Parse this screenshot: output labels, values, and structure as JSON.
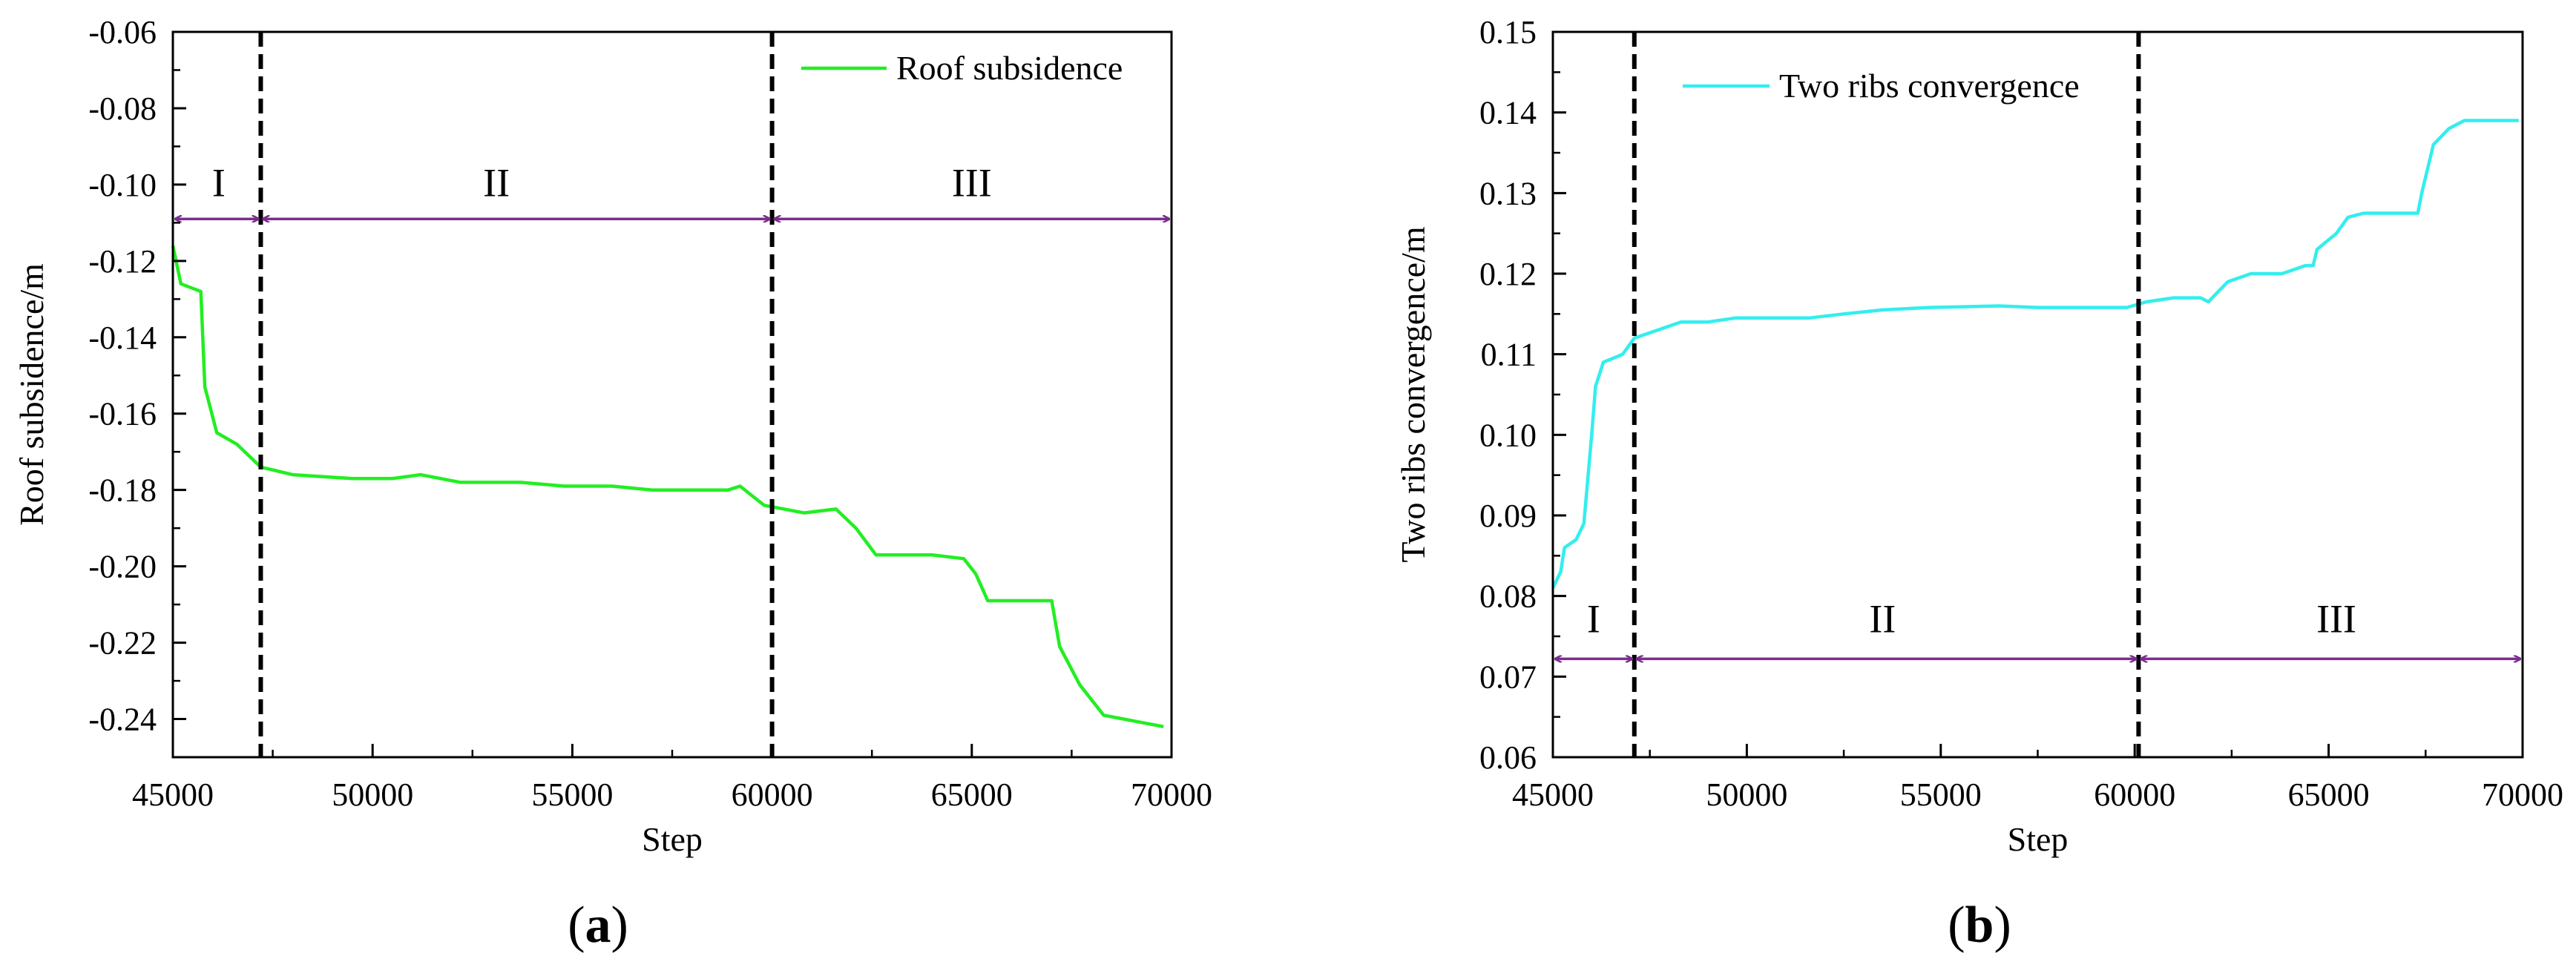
{
  "chart_data": [
    {
      "type": "line",
      "panel_label": "a",
      "xlabel": "Step",
      "ylabel": "Roof subsidence/m",
      "xlim": [
        45000,
        70000
      ],
      "ylim": [
        -0.25,
        -0.06
      ],
      "x_ticks": [
        45000,
        50000,
        55000,
        60000,
        65000,
        70000
      ],
      "y_ticks": [
        -0.24,
        -0.22,
        -0.2,
        -0.18,
        -0.16,
        -0.14,
        -0.12,
        -0.1,
        -0.08,
        -0.06
      ],
      "x_tick_labels": [
        "45000",
        "50000",
        "55000",
        "60000",
        "65000",
        "70000"
      ],
      "y_tick_labels": [
        "-0.24",
        "-0.22",
        "-0.20",
        "-0.18",
        "-0.16",
        "-0.14",
        "-0.12",
        "-0.10",
        "-0.08",
        "-0.06"
      ],
      "legend_position": "top-right",
      "series": [
        {
          "name": "Roof subsidence",
          "color": "#22ee22",
          "points": [
            [
              45000,
              -0.116
            ],
            [
              45200,
              -0.126
            ],
            [
              45700,
              -0.128
            ],
            [
              45800,
              -0.153
            ],
            [
              46100,
              -0.165
            ],
            [
              46600,
              -0.168
            ],
            [
              47200,
              -0.174
            ],
            [
              48000,
              -0.176
            ],
            [
              49500,
              -0.177
            ],
            [
              50500,
              -0.177
            ],
            [
              51200,
              -0.176
            ],
            [
              52200,
              -0.178
            ],
            [
              53700,
              -0.178
            ],
            [
              54800,
              -0.179
            ],
            [
              56000,
              -0.179
            ],
            [
              57000,
              -0.18
            ],
            [
              58900,
              -0.18
            ],
            [
              59200,
              -0.179
            ],
            [
              59800,
              -0.184
            ],
            [
              60800,
              -0.186
            ],
            [
              61600,
              -0.185
            ],
            [
              62100,
              -0.19
            ],
            [
              62600,
              -0.197
            ],
            [
              64000,
              -0.197
            ],
            [
              64800,
              -0.198
            ],
            [
              65100,
              -0.202
            ],
            [
              65400,
              -0.209
            ],
            [
              67000,
              -0.209
            ],
            [
              67200,
              -0.221
            ],
            [
              67700,
              -0.231
            ],
            [
              68300,
              -0.239
            ],
            [
              69800,
              -0.242
            ]
          ]
        }
      ],
      "stage_boundaries": [
        47200,
        60000
      ],
      "stage_arrow_y": -0.109,
      "stages": [
        {
          "label": "I",
          "from": 45000,
          "to": 47200,
          "label_x": 46150,
          "label_y": -0.103
        },
        {
          "label": "II",
          "from": 47200,
          "to": 60000,
          "label_x": 53100,
          "label_y": -0.103
        },
        {
          "label": "III",
          "from": 60000,
          "to": 70000,
          "label_x": 65000,
          "label_y": -0.103
        }
      ],
      "stage_color": "#7b2d8e"
    },
    {
      "type": "line",
      "panel_label": "b",
      "xlabel": "Step",
      "ylabel": "Two ribs convergence/m",
      "xlim": [
        45000,
        70000
      ],
      "ylim": [
        0.06,
        0.15
      ],
      "x_ticks": [
        45000,
        50000,
        55000,
        60000,
        65000,
        70000
      ],
      "y_ticks": [
        0.06,
        0.07,
        0.08,
        0.09,
        0.1,
        0.11,
        0.12,
        0.13,
        0.14,
        0.15
      ],
      "x_tick_labels": [
        "45000",
        "50000",
        "55000",
        "60000",
        "65000",
        "70000"
      ],
      "y_tick_labels": [
        "0.06",
        "0.07",
        "0.08",
        "0.09",
        "0.10",
        "0.11",
        "0.12",
        "0.13",
        "0.14",
        "0.15"
      ],
      "legend_position": "top-left",
      "series": [
        {
          "name": "Two ribs convergence",
          "color": "#33eeee",
          "points": [
            [
              45000,
              0.081
            ],
            [
              45200,
              0.083
            ],
            [
              45300,
              0.086
            ],
            [
              45600,
              0.087
            ],
            [
              45800,
              0.089
            ],
            [
              46000,
              0.1
            ],
            [
              46100,
              0.106
            ],
            [
              46300,
              0.109
            ],
            [
              46800,
              0.11
            ],
            [
              47100,
              0.112
            ],
            [
              47700,
              0.113
            ],
            [
              48300,
              0.114
            ],
            [
              49000,
              0.114
            ],
            [
              49700,
              0.1145
            ],
            [
              51600,
              0.1145
            ],
            [
              52500,
              0.115
            ],
            [
              53500,
              0.1155
            ],
            [
              54700,
              0.1158
            ],
            [
              56500,
              0.116
            ],
            [
              57500,
              0.1158
            ],
            [
              59800,
              0.1158
            ],
            [
              60300,
              0.1165
            ],
            [
              61000,
              0.117
            ],
            [
              61700,
              0.117
            ],
            [
              61900,
              0.1165
            ],
            [
              62400,
              0.119
            ],
            [
              63000,
              0.12
            ],
            [
              63800,
              0.12
            ],
            [
              64400,
              0.121
            ],
            [
              64600,
              0.121
            ],
            [
              64700,
              0.123
            ],
            [
              65200,
              0.125
            ],
            [
              65500,
              0.127
            ],
            [
              65900,
              0.1275
            ],
            [
              67300,
              0.1275
            ],
            [
              67400,
              0.13
            ],
            [
              67700,
              0.136
            ],
            [
              68100,
              0.138
            ],
            [
              68500,
              0.139
            ],
            [
              69900,
              0.139
            ]
          ]
        }
      ],
      "stage_boundaries": [
        47100,
        60100
      ],
      "stage_arrow_y": 0.0722,
      "stages": [
        {
          "label": "I",
          "from": 45000,
          "to": 47100,
          "label_x": 46050,
          "label_y": 0.0755
        },
        {
          "label": "II",
          "from": 47100,
          "to": 60100,
          "label_x": 53500,
          "label_y": 0.0755
        },
        {
          "label": "III",
          "from": 60100,
          "to": 70000,
          "label_x": 65200,
          "label_y": 0.0755
        }
      ],
      "stage_color": "#7b2d8e"
    }
  ]
}
